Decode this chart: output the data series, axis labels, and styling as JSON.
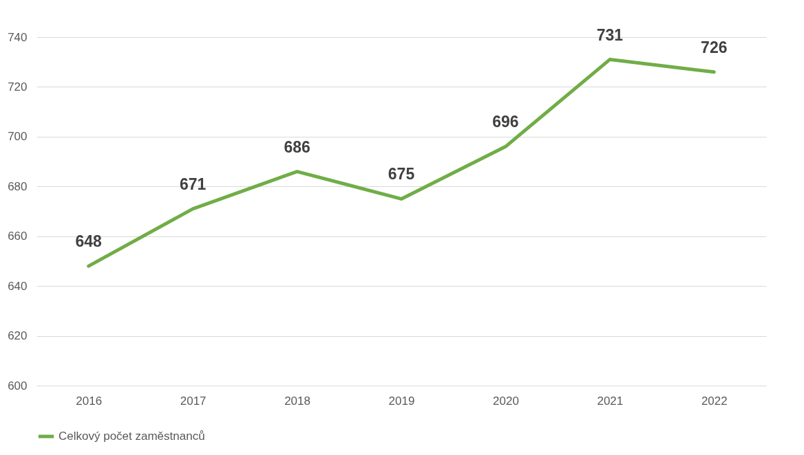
{
  "chart_data": {
    "type": "line",
    "categories": [
      "2016",
      "2017",
      "2018",
      "2019",
      "2020",
      "2021",
      "2022"
    ],
    "series": [
      {
        "name": "Celkový počet zaměstnanců",
        "color": "#70ad47",
        "values": [
          648,
          671,
          686,
          675,
          696,
          731,
          726
        ]
      }
    ],
    "ylim": [
      600,
      740
    ],
    "yticks": [
      600,
      620,
      640,
      660,
      680,
      700,
      720,
      740
    ],
    "grid": "y",
    "legend": "bottom",
    "data_labels": true
  }
}
